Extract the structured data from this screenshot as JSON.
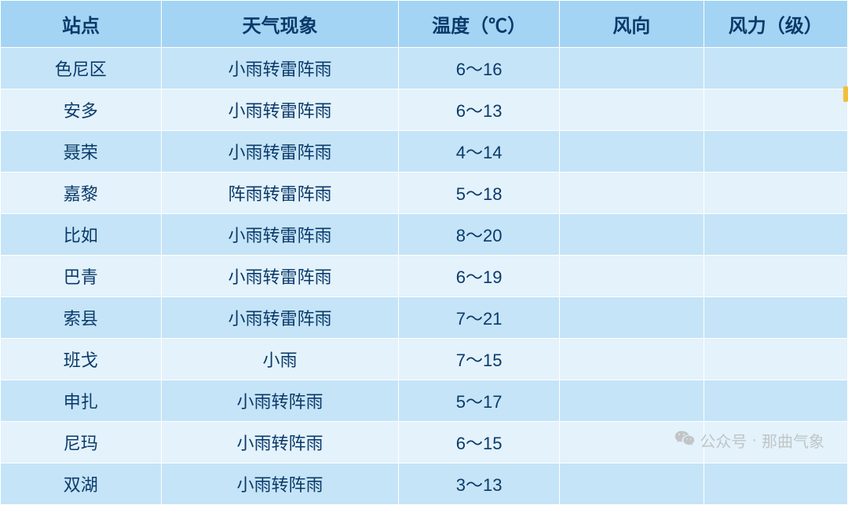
{
  "table": {
    "header_bg": "#a4d4f4",
    "row_odd_bg": "#c5e4f7",
    "row_even_bg": "#e3f2fb",
    "text_color": "#0a3a6a",
    "header_fontsize": 24,
    "cell_fontsize": 22,
    "columns": [
      {
        "key": "station",
        "label": "站点",
        "width_pct": 19
      },
      {
        "key": "weather",
        "label": "天气现象",
        "width_pct": 28
      },
      {
        "key": "temp",
        "label": "温度（℃）",
        "width_pct": 19
      },
      {
        "key": "wind_dir",
        "label": "风向",
        "width_pct": 17
      },
      {
        "key": "wind_lvl",
        "label": "风力（级）",
        "width_pct": 17
      }
    ],
    "rows": [
      {
        "station": "色尼区",
        "weather": "小雨转雷阵雨",
        "temp": "6～16",
        "wind_dir": "",
        "wind_lvl": ""
      },
      {
        "station": "安多",
        "weather": "小雨转雷阵雨",
        "temp": "6～13",
        "wind_dir": "",
        "wind_lvl": ""
      },
      {
        "station": "聂荣",
        "weather": "小雨转雷阵雨",
        "temp": "4～14",
        "wind_dir": "",
        "wind_lvl": ""
      },
      {
        "station": "嘉黎",
        "weather": "阵雨转雷阵雨",
        "temp": "5～18",
        "wind_dir": "",
        "wind_lvl": ""
      },
      {
        "station": "比如",
        "weather": "小雨转雷阵雨",
        "temp": "8～20",
        "wind_dir": "",
        "wind_lvl": ""
      },
      {
        "station": "巴青",
        "weather": "小雨转雷阵雨",
        "temp": "6～19",
        "wind_dir": "",
        "wind_lvl": ""
      },
      {
        "station": "索县",
        "weather": "小雨转雷阵雨",
        "temp": "7～21",
        "wind_dir": "",
        "wind_lvl": ""
      },
      {
        "station": "班戈",
        "weather": "小雨",
        "temp": "7～15",
        "wind_dir": "",
        "wind_lvl": ""
      },
      {
        "station": "申扎",
        "weather": "小雨转阵雨",
        "temp": "5～17",
        "wind_dir": "",
        "wind_lvl": ""
      },
      {
        "station": "尼玛",
        "weather": "小雨转阵雨",
        "temp": "6～15",
        "wind_dir": "",
        "wind_lvl": ""
      },
      {
        "station": "双湖",
        "weather": "小雨转阵雨",
        "temp": "3～13",
        "wind_dir": "",
        "wind_lvl": ""
      }
    ]
  },
  "watermark": {
    "prefix": "公众号",
    "separator": "·",
    "name": "那曲气象",
    "color": "#b6b6b6",
    "fontsize": 20
  }
}
